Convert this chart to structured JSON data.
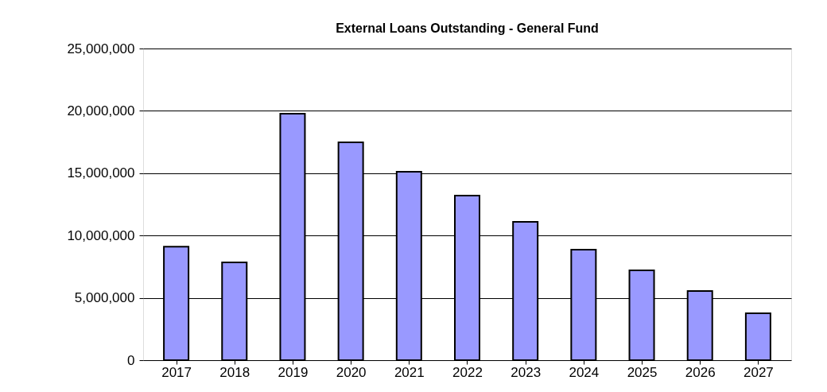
{
  "chart_data": {
    "type": "bar",
    "title": "External Loans Outstanding - General Fund",
    "categories": [
      "2017",
      "2018",
      "2019",
      "2020",
      "2021",
      "2022",
      "2023",
      "2024",
      "2025",
      "2026",
      "2027"
    ],
    "values": [
      9100000,
      7850000,
      19770000,
      17470000,
      15110000,
      13200000,
      11100000,
      8860000,
      7200000,
      5550000,
      3760000
    ],
    "color": "#9999ff",
    "ylim": [
      0,
      25000000
    ],
    "yticks": [
      0,
      {
        "value": 5000000,
        "label": "5,000,000"
      },
      {
        "value": 10000000,
        "label": "10,000,000"
      },
      {
        "value": 15000000,
        "label": "15,000,000"
      },
      {
        "value": 20000000,
        "label": "20,000,000"
      },
      {
        "value": 25000000,
        "label": "25,000,000"
      }
    ],
    "grid": "y"
  }
}
